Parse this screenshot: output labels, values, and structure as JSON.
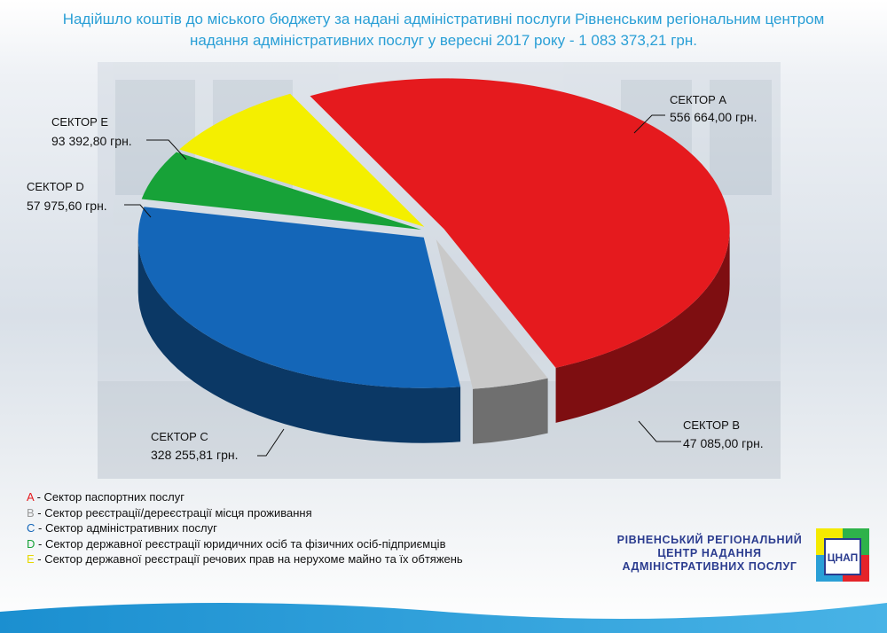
{
  "chart_data": {
    "type": "pie",
    "title": "Надійшло коштів до міського бюджету за надані адміністративні послуги Рівненським регіональним центром надання адміністративних послуг у вересні 2017 року - 1 083 373,21 грн.",
    "categories": [
      "СЕКТОР A",
      "СЕКТОР B",
      "СЕКТОР C",
      "СЕКТОР D",
      "СЕКТОР E"
    ],
    "values": [
      556664.0,
      47085.0,
      328255.81,
      57975.6,
      93392.8
    ],
    "value_labels": [
      "556 664,00 грн.",
      "47 085,00 грн.",
      "328 255,81 грн.",
      "57 975,60 грн.",
      "93 392,80 грн."
    ],
    "colors": [
      "#e51a1e",
      "#c9c9c9",
      "#1466b8",
      "#17a238",
      "#f4ef00"
    ],
    "legend": [
      {
        "letter": "A",
        "text": " - Сектор паспортних послуг"
      },
      {
        "letter": "B",
        "text": " - Сектор реєстрації/дереєстрації місця проживання"
      },
      {
        "letter": "C",
        "text": " - Сектор адміністративних послуг"
      },
      {
        "letter": "D",
        "text": " - Сектор державної реєстрації юридичних осіб та фізичних осіб-підприємців"
      },
      {
        "letter": "E",
        "text": " - Сектор державної реєстрації речових прав на нерухоме майно та їх обтяжень"
      }
    ]
  },
  "logo": {
    "lines": [
      "РІВНЕНСЬКИЙ РЕГІОНАЛЬНИЙ",
      "ЦЕНТР НАДАННЯ",
      "АДМІНІСТРАТИВНИХ ПОСЛУГ"
    ],
    "badge": "ЦНАП"
  }
}
